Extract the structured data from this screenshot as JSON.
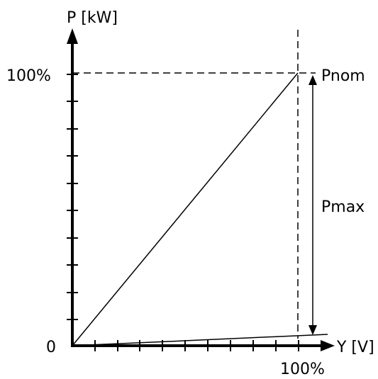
{
  "y_axis": {
    "label": "P [kW]",
    "tick_max": "100%",
    "origin": "0"
  },
  "x_axis": {
    "label": "Y [V]",
    "tick_max": "100%"
  },
  "annotations": {
    "nominal": "Pnom",
    "max_range": "Pmax"
  },
  "colors": {
    "line": "#000000",
    "background": "#ffffff"
  }
}
